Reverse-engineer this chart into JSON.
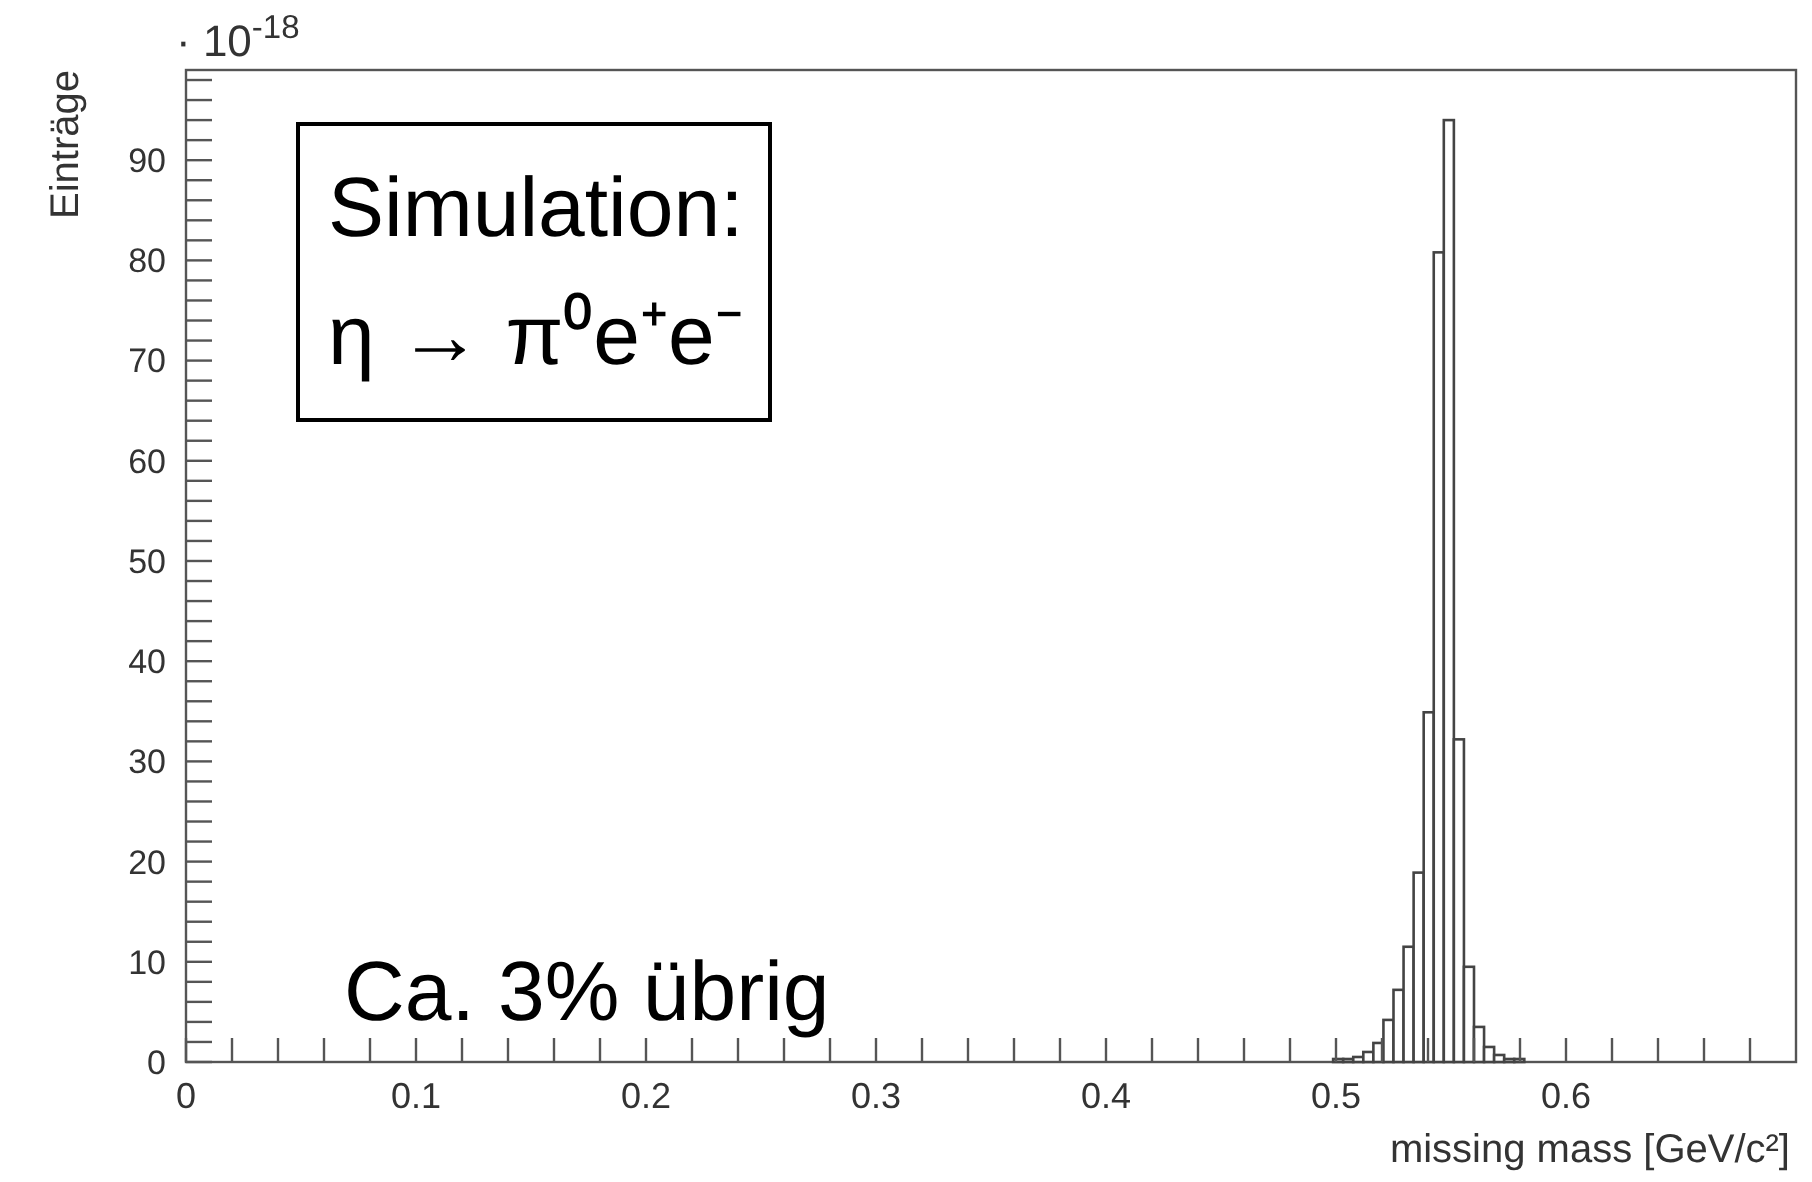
{
  "chart_data": {
    "type": "histogram",
    "xlabel": "missing mass [GeV/c²]",
    "ylabel": "Einträge",
    "annotations": [
      "· 10$^{-18}$",
      "Simulation:",
      "η → π⁰e⁺e⁻",
      "Ca. 3% übrig"
    ],
    "bins": [
      0.49875,
      0.503125,
      0.5075,
      0.511875,
      0.51625,
      0.520625,
      0.525,
      0.529375,
      0.53375,
      0.538125,
      0.5425,
      0.546875,
      0.55125,
      0.555625,
      0.56,
      0.564375,
      0.56875,
      0.573125,
      0.5775,
      0.581875
    ],
    "values": [
      0.3,
      0.3,
      0.5,
      1,
      1.9,
      4.2,
      7.2,
      11.5,
      18.9,
      34.9,
      80.8,
      94,
      32.2,
      9.5,
      3.5,
      1.5,
      0.7,
      0.3,
      0.3
    ],
    "color": "#444444",
    "xlim": [
      0,
      0.7
    ],
    "ylim": [
      0,
      99
    ],
    "xticks": [
      0,
      {
        "value": 0.02,
        "label": null
      },
      {
        "value": 0.04,
        "label": null
      },
      {
        "value": 0.06,
        "label": null
      },
      {
        "value": 0.08,
        "label": null
      },
      0.1,
      {
        "value": 0.12,
        "label": null
      },
      {
        "value": 0.14,
        "label": null
      },
      {
        "value": 0.16,
        "label": null
      },
      {
        "value": 0.18,
        "label": null
      },
      0.2,
      {
        "value": 0.22,
        "label": null
      },
      {
        "value": 0.24,
        "label": null
      },
      {
        "value": 0.26,
        "label": null
      },
      {
        "value": 0.28,
        "label": null
      },
      0.3,
      {
        "value": 0.32,
        "label": null
      },
      {
        "value": 0.34,
        "label": null
      },
      {
        "value": 0.36,
        "label": null
      },
      {
        "value": 0.38,
        "label": null
      },
      0.4,
      {
        "value": 0.42,
        "label": null
      },
      {
        "value": 0.44,
        "label": null
      },
      {
        "value": 0.46,
        "label": null
      },
      {
        "value": 0.48,
        "label": null
      },
      0.5,
      {
        "value": 0.52,
        "label": null
      },
      {
        "value": 0.54,
        "label": null
      },
      {
        "value": 0.56,
        "label": null
      },
      {
        "value": 0.58,
        "label": null
      },
      0.6,
      {
        "value": 0.62,
        "label": null
      },
      {
        "value": 0.64,
        "label": null
      },
      {
        "value": 0.66,
        "label": null
      },
      {
        "value": 0.68,
        "label": null
      }
    ],
    "yticks": [
      0,
      {
        "value": 2,
        "label": null
      },
      {
        "value": 4,
        "label": null
      },
      {
        "value": 6,
        "label": null
      },
      {
        "value": 8,
        "label": null
      },
      10,
      {
        "value": 12,
        "label": null
      },
      {
        "value": 14,
        "label": null
      },
      {
        "value": 16,
        "label": null
      },
      {
        "value": 18,
        "label": null
      },
      20,
      {
        "value": 22,
        "label": null
      },
      {
        "value": 24,
        "label": null
      },
      {
        "value": 26,
        "label": null
      },
      {
        "value": 28,
        "label": null
      },
      30,
      {
        "value": 32,
        "label": null
      },
      {
        "value": 34,
        "label": null
      },
      {
        "value": 36,
        "label": null
      },
      {
        "value": 38,
        "label": null
      },
      40,
      {
        "value": 42,
        "label": null
      },
      {
        "value": 44,
        "label": null
      },
      {
        "value": 46,
        "label": null
      },
      {
        "value": 48,
        "label": null
      },
      50,
      {
        "value": 52,
        "label": null
      },
      {
        "value": 54,
        "label": null
      },
      {
        "value": 56,
        "label": null
      },
      {
        "value": 58,
        "label": null
      },
      60,
      {
        "value": 62,
        "label": null
      },
      {
        "value": 64,
        "label": null
      },
      {
        "value": 66,
        "label": null
      },
      {
        "value": 68,
        "label": null
      },
      70,
      {
        "value": 72,
        "label": null
      },
      {
        "value": 74,
        "label": null
      },
      {
        "value": 76,
        "label": null
      },
      {
        "value": 78,
        "label": null
      },
      80,
      {
        "value": 82,
        "label": null
      },
      {
        "value": 84,
        "label": null
      },
      {
        "value": 86,
        "label": null
      },
      {
        "value": 88,
        "label": null
      },
      90,
      {
        "value": 92,
        "label": null
      },
      {
        "value": 94,
        "label": null
      },
      {
        "value": 96,
        "label": null
      },
      {
        "value": 98,
        "label": null
      }
    ]
  }
}
